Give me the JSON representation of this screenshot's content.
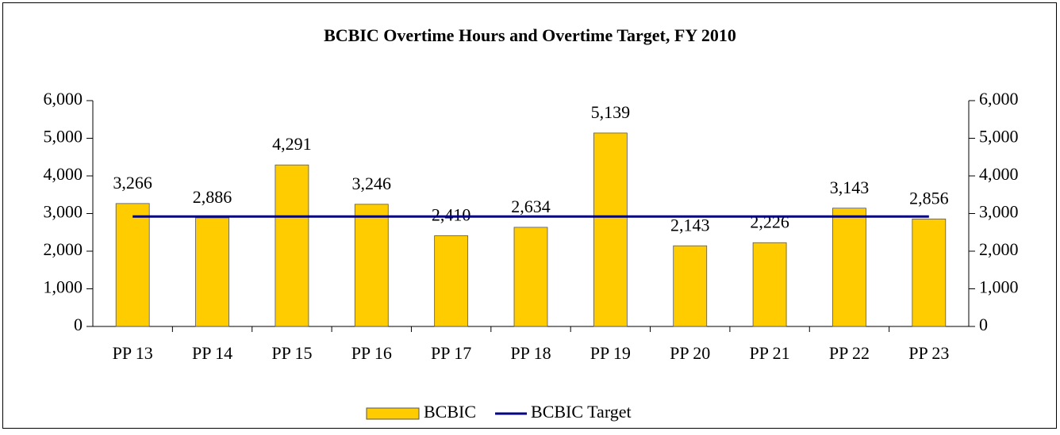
{
  "chart_data": {
    "type": "bar",
    "title": "BCBIC Overtime Hours and Overtime Target, FY 2010",
    "categories": [
      "PP 13",
      "PP 14",
      "PP 15",
      "PP 16",
      "PP 17",
      "PP 18",
      "PP 19",
      "PP 20",
      "PP 21",
      "PP 22",
      "PP 23"
    ],
    "series": [
      {
        "name": "BCBIC",
        "type": "bar",
        "color": "#ffcc00",
        "values": [
          3266,
          2886,
          4291,
          3246,
          2410,
          2634,
          5139,
          2143,
          2226,
          3143,
          2856
        ],
        "value_labels": [
          "3,266",
          "2,886",
          "4,291",
          "3,246",
          "2,410",
          "2,634",
          "5,139",
          "2,143",
          "2,226",
          "3,143",
          "2,856"
        ]
      },
      {
        "name": "BCBIC Target",
        "type": "line",
        "color": "#000080",
        "values": [
          2920,
          2920,
          2920,
          2920,
          2920,
          2920,
          2920,
          2920,
          2920,
          2920,
          2920
        ]
      }
    ],
    "ylim": [
      0,
      6000
    ],
    "yticks": [
      0,
      {
        "value": 1000,
        "label": "1,000"
      },
      {
        "value": 2000,
        "label": "2,000"
      },
      {
        "value": 3000,
        "label": "3,000"
      },
      {
        "value": 4000,
        "label": "4,000"
      },
      {
        "value": 5000,
        "label": "5,000"
      },
      {
        "value": 6000,
        "label": "6,000"
      }
    ],
    "y2lim": [
      0,
      6000
    ],
    "y2ticks": [
      0,
      {
        "value": 1000,
        "label": "1,000"
      },
      {
        "value": 2000,
        "label": "2,000"
      },
      {
        "value": 3000,
        "label": "3,000"
      },
      {
        "value": 4000,
        "label": "4,000"
      },
      {
        "value": 5000,
        "label": "5,000"
      },
      {
        "value": 6000,
        "label": "6,000"
      }
    ],
    "legend": "bottom"
  }
}
